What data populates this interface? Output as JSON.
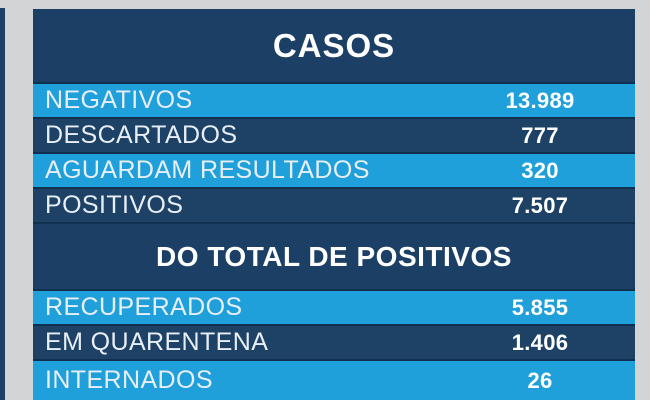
{
  "colors": {
    "background_gray": "#d2d4d6",
    "panel_navy": "#1c4065",
    "row_navy": "#1e4166",
    "row_light_blue": "#1fa0da",
    "separator_navy": "#11304f",
    "label_text": "#e7eef6",
    "value_text": "#ffffff"
  },
  "chart_data": {
    "type": "table",
    "title": "CASOS",
    "sections": [
      {
        "header": "CASOS",
        "rows": [
          {
            "label": "NEGATIVOS",
            "value": "13.989",
            "number": 13989
          },
          {
            "label": "DESCARTADOS",
            "value": "777",
            "number": 777
          },
          {
            "label": "AGUARDAM RESULTADOS",
            "value": "320",
            "number": 320
          },
          {
            "label": "POSITIVOS",
            "value": "7.507",
            "number": 7507
          }
        ]
      },
      {
        "header": "DO TOTAL DE POSITIVOS",
        "rows": [
          {
            "label": "RECUPERADOS",
            "value": "5.855",
            "number": 5855
          },
          {
            "label": "EM QUARENTENA",
            "value": "1.406",
            "number": 1406
          },
          {
            "label": "INTERNADOS",
            "value": "26",
            "number": 26
          }
        ]
      }
    ]
  }
}
